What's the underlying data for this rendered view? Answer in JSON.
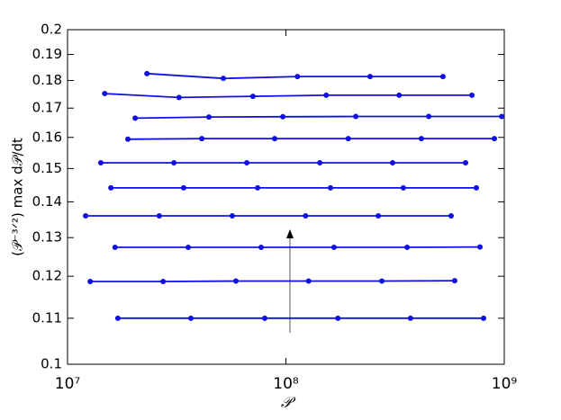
{
  "chart_data": {
    "type": "line",
    "x_label": "𝒫",
    "y_label": "(𝒫⁻³ᐟ²) max d𝒫/dt",
    "xscale": "log",
    "yscale": "log",
    "xlim": [
      10000000,
      1000000000
    ],
    "xticks": [
      {
        "value": 10000000,
        "label": "10⁷"
      },
      {
        "value": 100000000,
        "label": "10⁸"
      },
      {
        "value": 1000000000,
        "label": "10⁹"
      }
    ],
    "ylim": [
      0.1,
      0.2
    ],
    "yticks": [
      0.1,
      0.11,
      0.12,
      0.13,
      0.14,
      0.15,
      0.16,
      0.17,
      0.18,
      0.19,
      0.2
    ],
    "color": "#1010e0",
    "series": [
      {
        "x": [
          17000000,
          36700000,
          80000000,
          173000000,
          372000000,
          804000000
        ],
        "values": [
          0.11,
          0.11,
          0.11,
          0.11,
          0.11,
          0.11
        ]
      },
      {
        "x": [
          12700000,
          27400000,
          59000000,
          127000000,
          275000000,
          593000000
        ],
        "values": [
          0.1187,
          0.1187,
          0.1188,
          0.1188,
          0.1188,
          0.1189
        ]
      },
      {
        "x": [
          16500000,
          35700000,
          77000000,
          166000000,
          359000000,
          774000000
        ],
        "values": [
          0.1274,
          0.1274,
          0.1274,
          0.1274,
          0.1274,
          0.1275
        ]
      },
      {
        "x": [
          12100000,
          26300000,
          56800000,
          123000000,
          265000000,
          571000000
        ],
        "values": [
          0.136,
          0.136,
          0.136,
          0.136,
          0.136,
          0.136
        ]
      },
      {
        "x": [
          15800000,
          34000000,
          74200000,
          160000000,
          345000000,
          745000000
        ],
        "values": [
          0.1441,
          0.1441,
          0.1441,
          0.1441,
          0.1441,
          0.1441
        ]
      },
      {
        "x": [
          14200000,
          30700000,
          66200000,
          143000000,
          308000000,
          665000000
        ],
        "values": [
          0.1518,
          0.1518,
          0.1518,
          0.1518,
          0.1518,
          0.1518
        ]
      },
      {
        "x": [
          18900000,
          41200000,
          88800000,
          193000000,
          417000000,
          901000000
        ],
        "values": [
          0.1594,
          0.1596,
          0.1596,
          0.1596,
          0.1596,
          0.1596
        ]
      },
      {
        "x": [
          20400000,
          44400000,
          96800000,
          209000000,
          451000000,
          973000000
        ],
        "values": [
          0.1665,
          0.1669,
          0.167,
          0.1671,
          0.1671,
          0.1671
        ]
      },
      {
        "x": [
          14800000,
          32400000,
          70600000,
          153000000,
          330000000,
          711000000
        ],
        "values": [
          0.1752,
          0.1738,
          0.1742,
          0.1746,
          0.1746,
          0.1746
        ]
      },
      {
        "x": [
          23100000,
          51700000,
          113000000,
          243000000,
          524000000
        ],
        "values": [
          0.1826,
          0.1808,
          0.1815,
          0.1815,
          0.1815
        ]
      }
    ]
  }
}
